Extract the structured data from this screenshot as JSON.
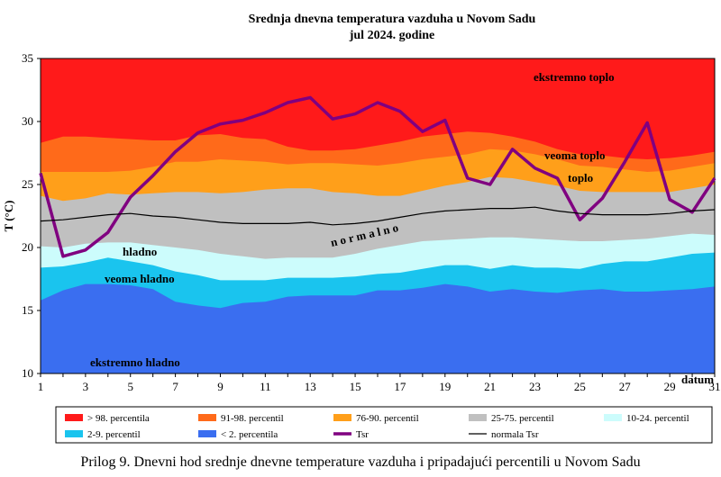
{
  "chart_data": {
    "type": "area",
    "title": "Srednja dnevna temperatura vazduha u Novom Sadu",
    "subtitle": "jul 2024. godine",
    "ylabel": "T (°C)",
    "xlabel": "datum",
    "ylim": [
      10,
      35
    ],
    "yticks": [
      10,
      15,
      20,
      25,
      30,
      35
    ],
    "xlim": [
      1,
      31
    ],
    "xticks": [
      1,
      3,
      5,
      7,
      9,
      11,
      13,
      15,
      17,
      19,
      21,
      23,
      25,
      27,
      29,
      31
    ],
    "x": [
      1,
      2,
      3,
      4,
      5,
      6,
      7,
      8,
      9,
      10,
      11,
      12,
      13,
      14,
      15,
      16,
      17,
      18,
      19,
      20,
      21,
      22,
      23,
      24,
      25,
      26,
      27,
      28,
      29,
      30,
      31
    ],
    "bands": [
      {
        "name": "> 98. percentila",
        "color": "#ff1a1a",
        "values": [
          35,
          35,
          35,
          35,
          35,
          35,
          35,
          35,
          35,
          35,
          35,
          35,
          35,
          35,
          35,
          35,
          35,
          35,
          35,
          35,
          35,
          35,
          35,
          35,
          35,
          35,
          35,
          35,
          35,
          35,
          35
        ]
      },
      {
        "name": "91-98. percentil",
        "color": "#ff6a1a",
        "values": [
          28.3,
          28.8,
          28.8,
          28.7,
          28.6,
          28.5,
          28.5,
          28.9,
          29.0,
          28.7,
          28.6,
          28.0,
          27.7,
          27.7,
          27.8,
          28.1,
          28.4,
          28.8,
          29.0,
          29.2,
          29.1,
          28.8,
          28.4,
          27.8,
          27.4,
          27.3,
          27.1,
          27.0,
          27.1,
          27.3,
          27.6
        ]
      },
      {
        "name": "76-90. percentil",
        "color": "#ff9f1a",
        "values": [
          26.0,
          26.0,
          26.0,
          26.0,
          26.1,
          26.4,
          26.8,
          26.8,
          27.0,
          26.9,
          26.8,
          26.6,
          26.7,
          26.7,
          26.6,
          26.5,
          26.7,
          27.0,
          27.2,
          27.4,
          27.8,
          27.7,
          27.4,
          27.0,
          26.5,
          26.4,
          26.2,
          26.0,
          26.1,
          26.4,
          26.7
        ]
      },
      {
        "name": "25-75. percentil",
        "color": "#c0c0c0",
        "values": [
          24.1,
          23.7,
          23.9,
          24.3,
          24.2,
          24.3,
          24.4,
          24.4,
          24.3,
          24.4,
          24.6,
          24.7,
          24.7,
          24.4,
          24.3,
          24.1,
          24.1,
          24.5,
          24.9,
          25.2,
          25.6,
          25.5,
          25.2,
          24.9,
          24.5,
          24.4,
          24.4,
          24.4,
          24.4,
          24.7,
          25.0
        ]
      },
      {
        "name": "10-24. percentil",
        "color": "#ccfcfc",
        "values": [
          20.1,
          20.0,
          20.3,
          20.4,
          20.4,
          20.2,
          20.0,
          19.8,
          19.5,
          19.3,
          19.1,
          19.2,
          19.2,
          19.2,
          19.5,
          19.9,
          20.2,
          20.5,
          20.6,
          20.7,
          20.8,
          20.8,
          20.7,
          20.6,
          20.5,
          20.5,
          20.6,
          20.7,
          20.9,
          21.1,
          21.0
        ]
      },
      {
        "name": "2-9. percentil",
        "color": "#1ac4ee",
        "values": [
          18.4,
          18.5,
          18.8,
          19.2,
          18.9,
          18.6,
          18.1,
          17.8,
          17.4,
          17.4,
          17.4,
          17.6,
          17.6,
          17.6,
          17.7,
          17.9,
          18.0,
          18.3,
          18.6,
          18.6,
          18.3,
          18.6,
          18.4,
          18.4,
          18.3,
          18.7,
          18.9,
          18.9,
          19.2,
          19.5,
          19.6
        ]
      },
      {
        "name": "< 2. percentila",
        "color": "#3a6ef0",
        "values": [
          15.8,
          16.6,
          17.1,
          17.1,
          17.0,
          16.7,
          15.7,
          15.4,
          15.2,
          15.6,
          15.7,
          16.1,
          16.2,
          16.2,
          16.2,
          16.6,
          16.6,
          16.8,
          17.1,
          16.9,
          16.5,
          16.7,
          16.5,
          16.4,
          16.6,
          16.7,
          16.5,
          16.5,
          16.6,
          16.7,
          16.9
        ]
      }
    ],
    "series": [
      {
        "name": "Tsr",
        "color": "#800080",
        "values": [
          25.9,
          19.3,
          19.8,
          21.2,
          24.0,
          25.7,
          27.6,
          29.1,
          29.8,
          30.1,
          30.7,
          31.5,
          31.9,
          30.2,
          30.6,
          31.5,
          30.8,
          29.2,
          30.1,
          25.5,
          25.0,
          27.8,
          26.3,
          25.5,
          22.2,
          23.9,
          26.8,
          29.9,
          23.8,
          22.8,
          25.5
        ]
      },
      {
        "name": "normala Tsr",
        "color": "#000000",
        "values": [
          22.1,
          22.2,
          22.4,
          22.6,
          22.7,
          22.5,
          22.4,
          22.2,
          22.0,
          21.9,
          21.9,
          21.9,
          22.0,
          21.8,
          21.9,
          22.1,
          22.4,
          22.7,
          22.9,
          23.0,
          23.1,
          23.1,
          23.2,
          22.9,
          22.7,
          22.6,
          22.6,
          22.6,
          22.7,
          22.9,
          23.0
        ]
      }
    ],
    "annotations": {
      "ekstremno_toplo": "ekstremno toplo",
      "veoma_toplo": "veoma toplo",
      "toplo": "toplo",
      "normalno": "n o r m a l n o",
      "hladno": "hladno",
      "veoma_hladno": "veoma hladno",
      "ekstremno_hladno": "ekstremno hladno"
    },
    "legend": "bottom"
  },
  "caption": "Prilog 9. Dnevni hod srednje dnevne temperature vazduha i pripadajući percentili u Novom Sadu"
}
